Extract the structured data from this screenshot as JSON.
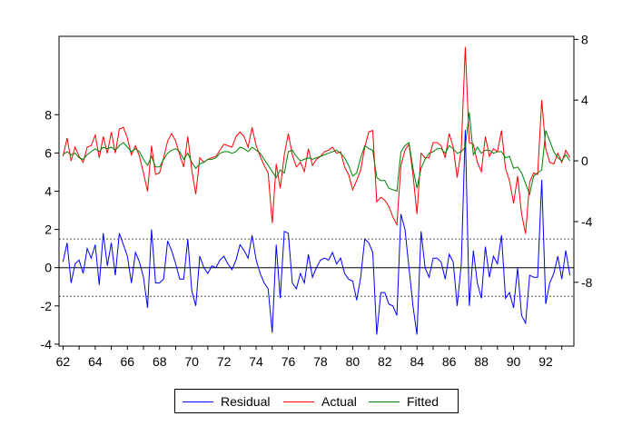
{
  "chart_data": {
    "type": "line",
    "title": "",
    "x": {
      "start": 1962,
      "step": 0.25,
      "range": [
        1961.75,
        1993.75
      ],
      "tick_labels": [
        "62",
        "64",
        "66",
        "68",
        "70",
        "72",
        "74",
        "76",
        "78",
        "80",
        "82",
        "84",
        "86",
        "88",
        "90",
        "92"
      ],
      "ticks": [
        1962,
        1964,
        1966,
        1968,
        1970,
        1972,
        1974,
        1976,
        1978,
        1980,
        1982,
        1984,
        1986,
        1988,
        1990,
        1992
      ]
    },
    "left_axis": {
      "range": [
        -4.1,
        12.1
      ],
      "tick_values": [
        -4,
        -2,
        0,
        2,
        4,
        6,
        8
      ],
      "tick_labels": [
        "-4",
        "-2",
        "0",
        "2",
        "4",
        "6",
        "8"
      ]
    },
    "right_axis": {
      "range": [
        -12.2,
        8.2
      ],
      "tick_values": [
        -8,
        -4,
        0,
        4,
        8
      ],
      "tick_labels": [
        "-8",
        "-4",
        "0",
        "4",
        "8"
      ]
    },
    "reference_lines": {
      "zero": 0,
      "band": [
        -1.5,
        1.5
      ]
    },
    "colors": {
      "Residual": "#0000ff",
      "Actual": "#ff0000",
      "Fitted": "#008000"
    },
    "series": [
      {
        "name": "Residual",
        "axis": "left",
        "values": [
          0.3,
          1.3,
          -0.8,
          0.2,
          0.4,
          -0.3,
          1.0,
          0.5,
          1.2,
          -0.9,
          1.8,
          0.1,
          1.3,
          -0.4,
          1.8,
          1.2,
          0.6,
          -0.8,
          0.8,
          0.3,
          -0.5,
          -2.1,
          2.0,
          -0.8,
          -0.8,
          -0.6,
          1.4,
          0.9,
          0.2,
          -0.6,
          -0.6,
          1.5,
          -1.2,
          -2.0,
          0.6,
          0.0,
          -0.3,
          0.1,
          0.0,
          0.4,
          0.6,
          0.2,
          -0.1,
          0.4,
          1.2,
          0.9,
          0.5,
          1.7,
          0.4,
          -0.3,
          -0.8,
          -1.1,
          -3.4,
          1.2,
          -1.6,
          1.9,
          1.8,
          -0.8,
          -1.1,
          -0.3,
          -0.8,
          0.7,
          -0.5,
          0.0,
          0.4,
          0.5,
          0.4,
          0.8,
          0.2,
          0.5,
          -0.3,
          -0.6,
          -0.7,
          -1.7,
          -0.5,
          1.5,
          1.3,
          0.8,
          -3.5,
          -1.3,
          -1.3,
          -1.9,
          -2.0,
          -2.5,
          2.8,
          2.0,
          0.0,
          -2.0,
          -3.5,
          1.9,
          0.0,
          -0.5,
          0.5,
          0.5,
          0.3,
          -0.6,
          0.7,
          0.3,
          -2.0,
          0.2,
          7.2,
          -2.0,
          0.9,
          -0.8,
          -1.6,
          1.1,
          -0.5,
          0.6,
          0.2,
          1.7,
          -1.6,
          -1.3,
          -2.1,
          0.0,
          -2.5,
          -2.9,
          -0.4,
          -0.5,
          -0.5,
          4.6,
          -1.9,
          -0.8,
          -0.3,
          0.6,
          -0.6,
          0.9,
          -0.4
        ]
      },
      {
        "name": "Actual",
        "axis": "right",
        "values": [
          0.3,
          1.5,
          0.0,
          0.9,
          0.3,
          -0.1,
          0.9,
          1.0,
          1.7,
          0.2,
          1.6,
          0.5,
          1.9,
          0.5,
          2.1,
          2.2,
          1.5,
          0.4,
          1.0,
          0.3,
          -0.8,
          -2.0,
          1.0,
          -0.9,
          -0.8,
          0.2,
          1.3,
          1.8,
          1.3,
          0.4,
          -0.4,
          1.6,
          -0.6,
          -2.2,
          0.2,
          -0.1,
          0.1,
          0.2,
          0.3,
          0.7,
          1.1,
          1.0,
          0.9,
          1.6,
          1.9,
          1.6,
          0.9,
          2.2,
          1.0,
          0.3,
          -0.3,
          -0.8,
          -4.1,
          -0.2,
          -1.8,
          0.4,
          1.8,
          0.4,
          -0.4,
          -0.1,
          -0.7,
          0.8,
          -0.3,
          0.1,
          0.3,
          0.6,
          0.7,
          0.9,
          0.5,
          0.6,
          -0.4,
          -0.9,
          -1.9,
          -1.3,
          -0.6,
          0.9,
          1.9,
          2.0,
          -2.7,
          -2.4,
          -2.6,
          -3.0,
          -3.7,
          -4.2,
          -0.3,
          0.7,
          1.1,
          -0.9,
          -3.5,
          0.5,
          0.2,
          0.2,
          1.2,
          1.2,
          1.0,
          0.2,
          1.8,
          0.9,
          -1.1,
          0.8,
          7.5,
          1.2,
          1.1,
          -0.1,
          -0.7,
          1.6,
          0.3,
          0.8,
          0.6,
          2.0,
          -0.5,
          -1.3,
          -2.8,
          -1.0,
          -3.5,
          -4.8,
          -1.4,
          -0.8,
          -0.9,
          4.0,
          0.8,
          -0.1,
          -0.2,
          0.5,
          -0.1,
          0.7,
          0.2
        ]
      },
      {
        "name": "Fitted",
        "axis": "right",
        "values": [
          0.4,
          0.6,
          0.4,
          0.5,
          0.2,
          0.1,
          0.4,
          0.6,
          0.8,
          0.6,
          0.9,
          0.8,
          0.9,
          0.7,
          1.0,
          1.2,
          0.9,
          0.6,
          0.8,
          0.6,
          0.1,
          -0.3,
          0.3,
          -0.4,
          -0.4,
          0.1,
          0.5,
          0.7,
          0.8,
          0.6,
          0.1,
          0.5,
          -0.1,
          -0.5,
          -0.2,
          -0.1,
          0.1,
          0.1,
          0.2,
          0.5,
          0.6,
          0.6,
          0.5,
          0.6,
          0.9,
          0.8,
          0.6,
          0.9,
          0.7,
          0.5,
          0.1,
          -0.3,
          -0.7,
          -1.1,
          -0.6,
          -0.8,
          0.6,
          0.7,
          0.3,
          0.0,
          0.1,
          0.2,
          0.1,
          0.2,
          0.3,
          0.4,
          0.5,
          0.6,
          0.7,
          0.5,
          0.2,
          -0.3,
          -1.0,
          -0.8,
          0.2,
          1.0,
          0.8,
          0.7,
          -1.1,
          -1.3,
          -1.3,
          -1.8,
          -1.9,
          -2.0,
          0.6,
          1.0,
          1.2,
          -0.5,
          -1.8,
          -0.5,
          0.1,
          0.5,
          0.6,
          0.8,
          0.8,
          0.5,
          1.0,
          0.8,
          0.5,
          0.6,
          0.9,
          3.2,
          0.4,
          0.9,
          0.5,
          0.7,
          0.7,
          0.5,
          0.6,
          0.6,
          0.2,
          0.3,
          -0.5,
          -0.4,
          -0.8,
          -1.5,
          -2.2,
          -1.0,
          -0.8,
          -0.6,
          2.0,
          1.3,
          0.6,
          0.2,
          0.0,
          0.4,
          0.0
        ]
      }
    ],
    "legend": {
      "placement": "bottom-center",
      "entries": [
        "Residual",
        "Actual",
        "Fitted"
      ]
    }
  }
}
